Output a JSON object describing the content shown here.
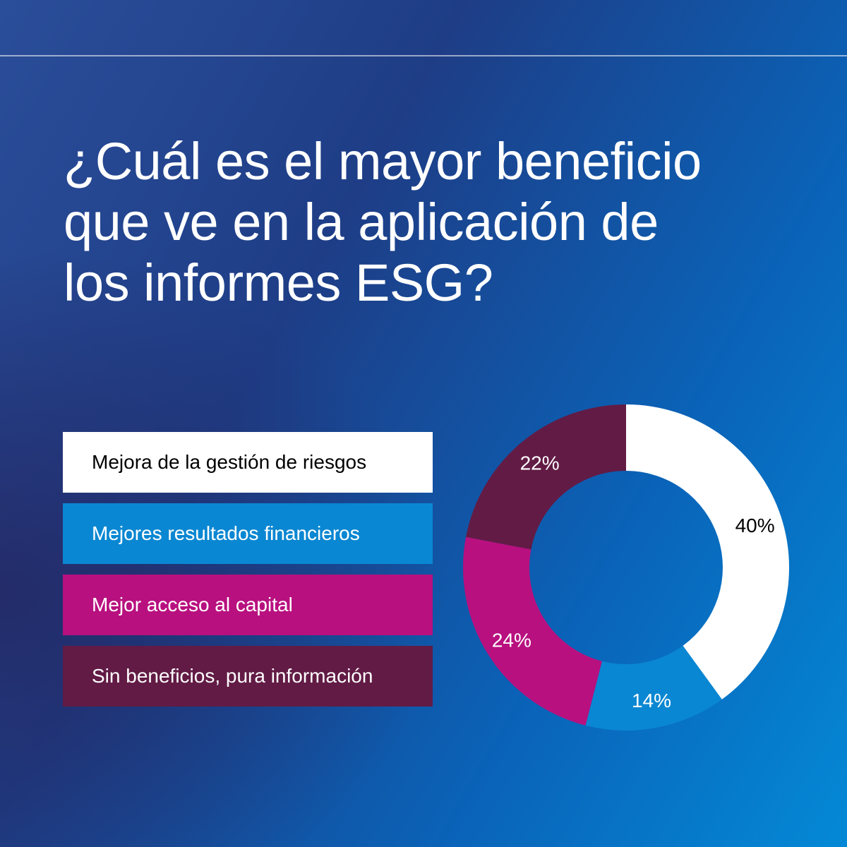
{
  "title_lines": [
    "¿Cuál es el mayor beneficio",
    "que ve en la aplicación de",
    "los informes ESG?"
  ],
  "chart_data": {
    "type": "pie",
    "categories": [
      "Mejora de la gestión de riesgos",
      "Mejores resultados financieros",
      "Mejor acceso al capital",
      "Sin beneficios, pura información"
    ],
    "values": [
      40,
      14,
      24,
      22
    ],
    "value_labels": [
      "40%",
      "14%",
      "24%",
      "22%"
    ],
    "colors": [
      "#ffffff",
      "#0a87d2",
      "#b8107f",
      "#621b45"
    ],
    "label_colors": [
      "#000000",
      "#ffffff",
      "#ffffff",
      "#ffffff"
    ],
    "donut": true,
    "start": "top",
    "direction": "clockwise",
    "legend_position": "left"
  }
}
